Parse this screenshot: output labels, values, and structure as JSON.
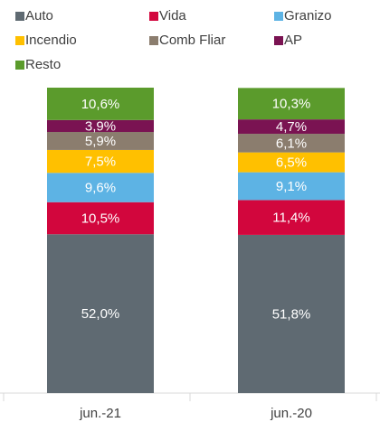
{
  "chart_data": {
    "type": "stacked_bar",
    "categories": [
      "jun.-21",
      "jun.-20"
    ],
    "series": [
      {
        "name": "Auto",
        "color": "#5f6a72",
        "values": [
          52.0,
          51.8
        ],
        "value_labels": [
          "52,0%",
          "51,8%"
        ]
      },
      {
        "name": "Vida",
        "color": "#d2063d",
        "values": [
          10.5,
          11.4
        ],
        "value_labels": [
          "10,5%",
          "11,4%"
        ]
      },
      {
        "name": "Granizo",
        "color": "#5db3e4",
        "values": [
          9.6,
          9.1
        ],
        "value_labels": [
          "9,6%",
          "9,1%"
        ]
      },
      {
        "name": "Incendio",
        "color": "#ffc000",
        "values": [
          7.5,
          6.5
        ],
        "value_labels": [
          "7,5%",
          "6,5%"
        ]
      },
      {
        "name": "Comb Fliar",
        "color": "#8b7d6e",
        "values": [
          5.9,
          6.1
        ],
        "value_labels": [
          "5,9%",
          "6,1%"
        ]
      },
      {
        "name": "AP",
        "color": "#7a1352",
        "values": [
          3.9,
          4.7
        ],
        "value_labels": [
          "3,9%",
          "4,7%"
        ]
      },
      {
        "name": "Resto",
        "color": "#5b9b2c",
        "values": [
          10.6,
          10.3
        ],
        "value_labels": [
          "10,6%",
          "10,3%"
        ]
      }
    ]
  }
}
